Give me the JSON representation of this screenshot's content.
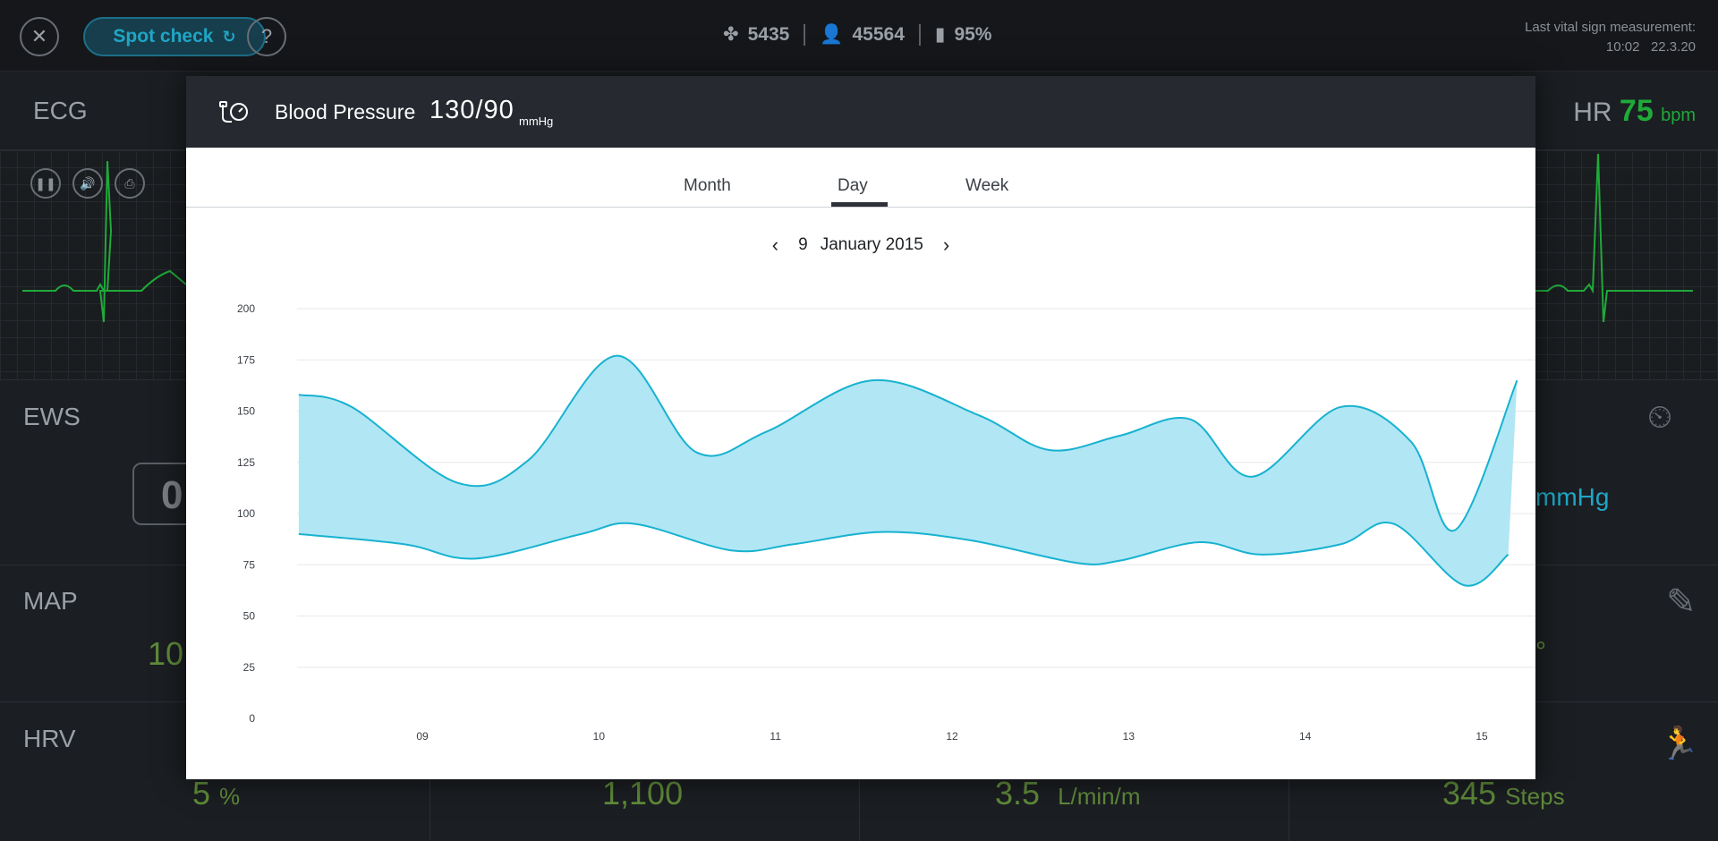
{
  "top_bar": {
    "spot_check_label": "Spot check",
    "counter_1": "5435",
    "counter_2": "45564",
    "battery": "95%",
    "last_measurement_label": "Last vital sign measurement:",
    "last_measurement_time": "10:02",
    "last_measurement_date": "22.3.20"
  },
  "tiles": {
    "ecg_label": "ECG",
    "hr_label": "HR",
    "hr_value": "75",
    "hr_unit": "bpm",
    "ews_label": "EWS",
    "ews_value": "0",
    "bp_unit": "mmHg",
    "map_label": "MAP",
    "map_value": "10",
    "temp_unit": "°",
    "hrv_label": "HRV",
    "hrv_value": "5",
    "hrv_unit": "%",
    "tile_2_value": "1,100",
    "tile_3_value": "3.5",
    "tile_3_unit": "L/min/m",
    "steps_value": "345",
    "steps_unit": "Steps"
  },
  "modal": {
    "title": "Blood Pressure",
    "value": "130/90",
    "unit": "mmHg",
    "tabs": [
      "Month",
      "Day",
      "Week"
    ],
    "active_tab": "Day",
    "date_day": "9",
    "date_month_year": "January 2015"
  },
  "colors": {
    "accent": "#1fa6c6",
    "band_fill": "#b1e6f4",
    "band_line": "#17b2d0",
    "good": "#1faa3a"
  },
  "chart_data": {
    "type": "area",
    "title": "",
    "xlabel": "",
    "ylabel": "",
    "ylim": [
      0,
      200
    ],
    "yticks": [
      0,
      25,
      50,
      75,
      100,
      125,
      150,
      175,
      200
    ],
    "xticks": [
      "09",
      "10",
      "11",
      "12",
      "13",
      "14",
      "15"
    ],
    "grid": true,
    "series": [
      {
        "role": "upper",
        "x": [
          8.3,
          8.6,
          9.2,
          9.6,
          10.1,
          10.55,
          10.95,
          11.55,
          12.15,
          12.55,
          12.95,
          13.35,
          13.7,
          14.2,
          14.6,
          14.85,
          15.2
        ],
        "values": [
          158,
          152,
          115,
          126,
          177,
          130,
          140,
          165,
          148,
          131,
          138,
          146,
          118,
          152,
          135,
          92,
          165
        ]
      },
      {
        "role": "lower",
        "x": [
          8.3,
          8.9,
          9.3,
          9.9,
          10.2,
          10.75,
          11.1,
          11.6,
          12.1,
          12.7,
          12.95,
          13.4,
          13.75,
          14.2,
          14.5,
          14.9,
          15.15
        ],
        "values": [
          90,
          85,
          78,
          90,
          95,
          82,
          85,
          91,
          87,
          76,
          77,
          86,
          80,
          85,
          95,
          65,
          80
        ]
      }
    ]
  }
}
